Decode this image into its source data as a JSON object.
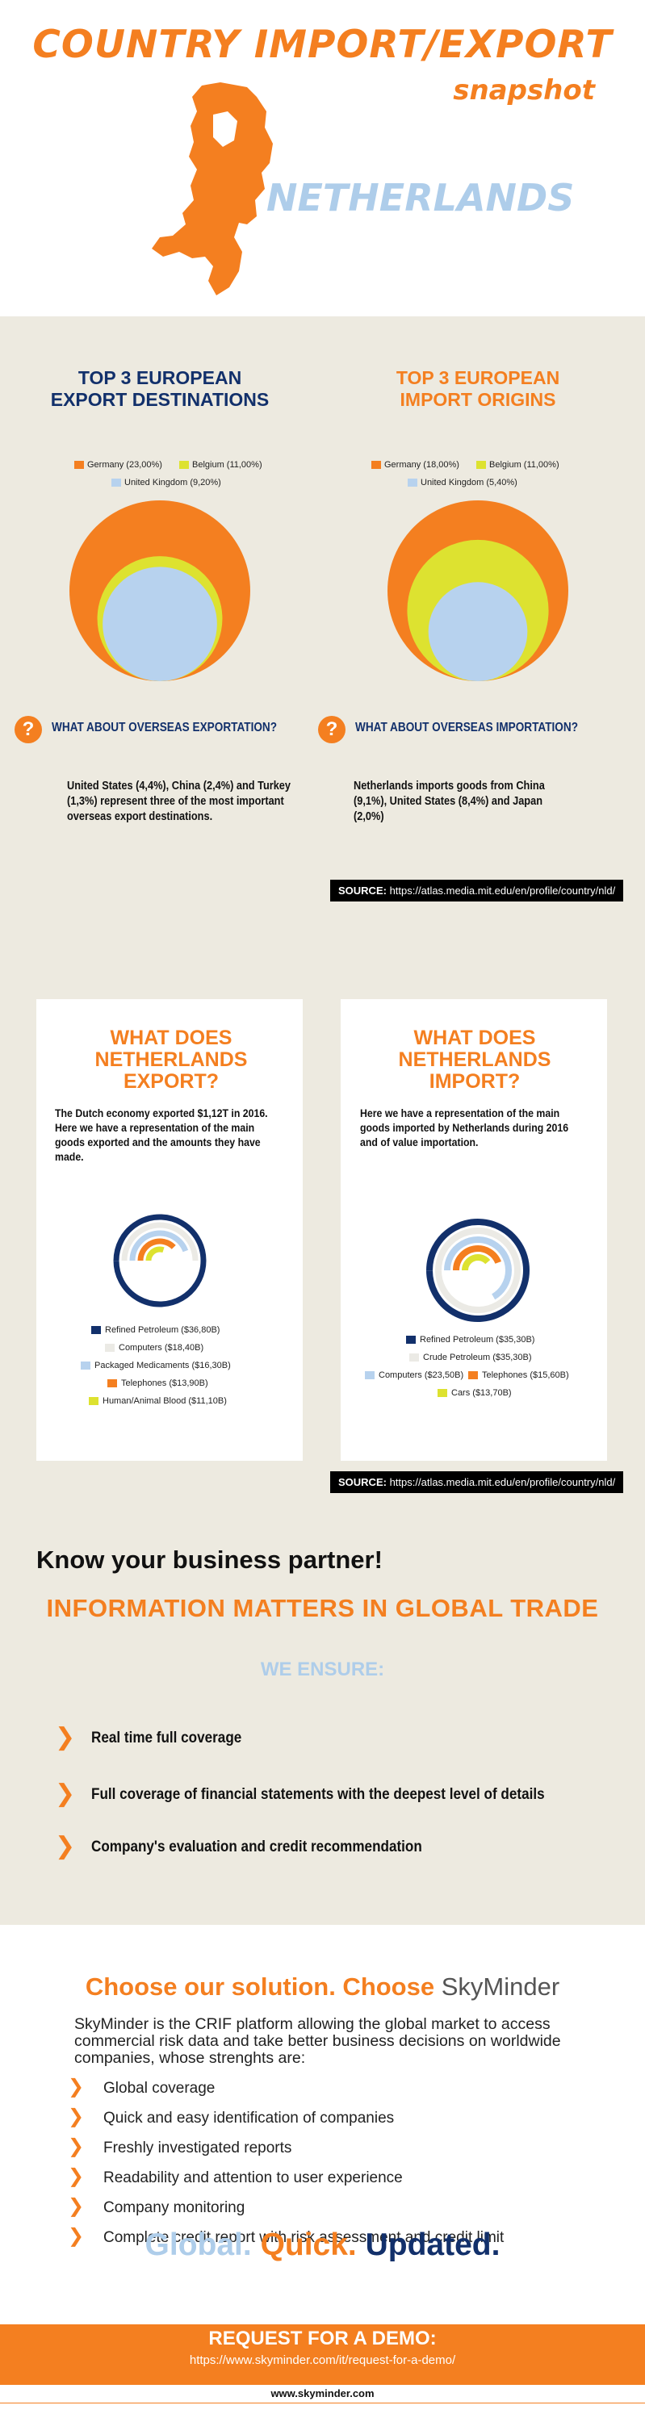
{
  "header": {
    "title": "COUNTRY IMPORT/EXPORT",
    "subtitle": "snapshot",
    "country": "NETHERLANDS"
  },
  "export_destinations": {
    "title_line1": "TOP 3 EUROPEAN",
    "title_line2": "EXPORT DESTINATIONS",
    "legend": [
      {
        "label": "Germany (23,00%)",
        "color": "#f47f20"
      },
      {
        "label": "Belgium (11,00%)",
        "color": "#dde230"
      },
      {
        "label": "United Kingdom (9,20%)",
        "color": "#b7d2ee"
      }
    ],
    "question": "WHAT ABOUT OVERSEAS EXPORTATION?",
    "text": "United States (4,4%), China  (2,4%) and Turkey (1,3%) represent three of the most important overseas export destinations."
  },
  "import_origins": {
    "title_line1": "TOP 3 EUROPEAN",
    "title_line2": "IMPORT ORIGINS",
    "legend": [
      {
        "label": "Germany (18,00%)",
        "color": "#f47f20"
      },
      {
        "label": "Belgium (11,00%)",
        "color": "#dde230"
      },
      {
        "label": "United Kingdom (5,40%)",
        "color": "#b7d2ee"
      }
    ],
    "question": "WHAT ABOUT OVERSEAS IMPORTATION?",
    "text": "Netherlands imports goods from China (9,1%), United States (8,4%) and Japan (2,0%)"
  },
  "source": {
    "label": "SOURCE:",
    "url": "https://atlas.media.mit.edu/en/profile/country/nld/"
  },
  "export_goods": {
    "title": "WHAT DOES NETHERLANDS EXPORT?",
    "text": "The Dutch economy exported $1,12T in 2016. Here we have a representation of the main goods exported and the amounts they have made.",
    "legend": [
      {
        "label": "Refined Petroleum ($36,80B)",
        "color": "#12306b"
      },
      {
        "label": "Computers ($18,40B)",
        "color": "#ebeae5"
      },
      {
        "label": "Packaged Medicaments ($16,30B)",
        "color": "#b7d2ee"
      },
      {
        "label": "Telephones ($13,90B)",
        "color": "#f47f20"
      },
      {
        "label": "Human/Animal Blood ($11,10B)",
        "color": "#dde230"
      }
    ]
  },
  "import_goods": {
    "title": "WHAT DOES NETHERLANDS IMPORT?",
    "text": "Here we have a representation of the main goods imported by Netherlands  during 2016 and of value importation.",
    "legend": [
      {
        "label": "Refined Petroleum ($35,30B)",
        "color": "#12306b"
      },
      {
        "label": "Crude Petroleum ($35,30B)",
        "color": "#ebeae5"
      },
      {
        "label": "Computers ($23,50B)",
        "color": "#b7d2ee"
      },
      {
        "label": "Telephones ($15,60B)",
        "color": "#f47f20"
      },
      {
        "label": "Cars ($13,70B)",
        "color": "#dde230"
      }
    ]
  },
  "partner": {
    "heading": "Know your business partner!",
    "subheading": "INFORMATION MATTERS IN GLOBAL TRADE",
    "ensure": "WE ENSURE:",
    "items": [
      "Real time full coverage",
      "Full coverage of financial statements with the deepest level of details",
      "Company's evaluation and credit recommendation"
    ]
  },
  "solution": {
    "heading": "Choose our solution. Choose",
    "brand": "SkyMinder",
    "description": "SkyMinder is the CRIF platform allowing the global market to access commercial risk data and take better business decisions on worldwide companies, whose strenghts are:",
    "items": [
      "Global coverage",
      "Quick and easy identification of companies",
      "Freshly investigated reports",
      "Readability and attention to user experience",
      "Company monitoring",
      "Complete credit report with risk assessment and credit limit"
    ],
    "slogan": [
      "Global.",
      "Quick.",
      "Updated."
    ],
    "slogan_colors": [
      "#aecdea",
      "#f47f20",
      "#12306b"
    ]
  },
  "demo": {
    "title": "REQUEST FOR A DEMO:",
    "url": "https://www.skyminder.com/it/request-for-a-demo/",
    "website": "www.skyminder.com"
  },
  "chart_data": [
    {
      "type": "pie",
      "title": "TOP 3 EUROPEAN EXPORT DESTINATIONS",
      "categories": [
        "Germany",
        "Belgium",
        "United Kingdom"
      ],
      "values": [
        23.0,
        11.0,
        9.2
      ]
    },
    {
      "type": "pie",
      "title": "TOP 3 EUROPEAN IMPORT ORIGINS",
      "categories": [
        "Germany",
        "Belgium",
        "United Kingdom"
      ],
      "values": [
        18.0,
        11.0,
        5.4
      ]
    },
    {
      "type": "bar",
      "title": "WHAT DOES NETHERLANDS EXPORT?",
      "categories": [
        "Refined Petroleum",
        "Computers",
        "Packaged Medicaments",
        "Telephones",
        "Human/Animal Blood"
      ],
      "values": [
        36.8,
        18.4,
        16.3,
        13.9,
        11.1
      ]
    },
    {
      "type": "bar",
      "title": "WHAT DOES NETHERLANDS IMPORT?",
      "categories": [
        "Refined Petroleum",
        "Crude Petroleum",
        "Computers",
        "Telephones",
        "Cars"
      ],
      "values": [
        35.3,
        35.3,
        23.5,
        15.6,
        13.7
      ]
    }
  ]
}
